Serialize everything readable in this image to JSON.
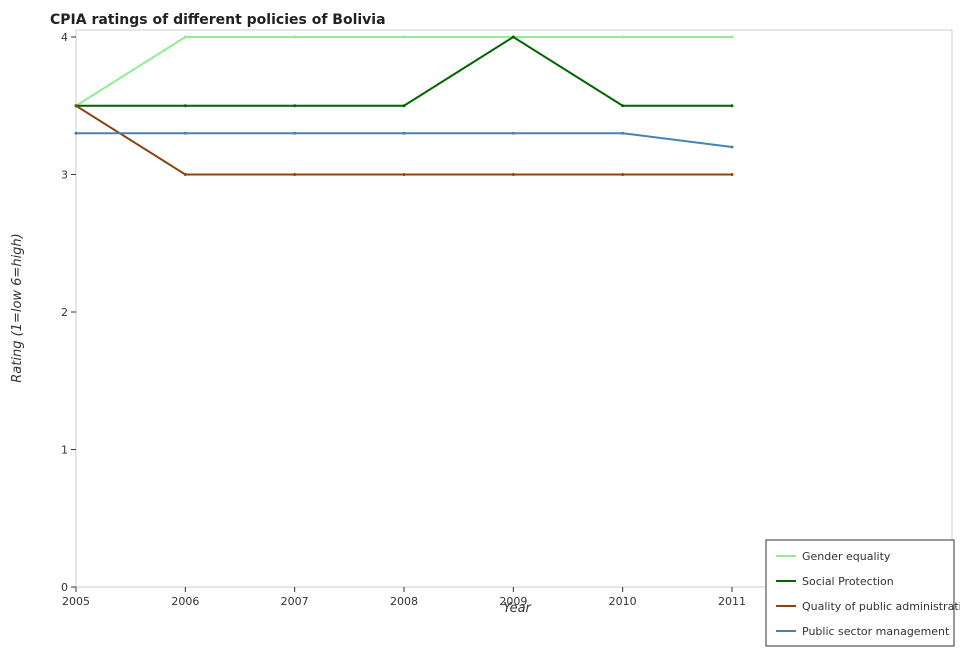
{
  "chart_data": {
    "type": "line",
    "title": "CPIA ratings of different policies of Bolivia",
    "xlabel": "Year",
    "ylabel": "Rating (1=low 6=high)",
    "categories": [
      "2005",
      "2006",
      "2007",
      "2008",
      "2009",
      "2010",
      "2011"
    ],
    "ylim": [
      0,
      4
    ],
    "yticks": [
      "0",
      "1",
      "2",
      "3",
      "4"
    ],
    "grid": false,
    "legend_position": "bottom-right",
    "series": [
      {
        "name": "Gender equality",
        "color": "#90ee90",
        "values": [
          3.5,
          4.0,
          4.0,
          4.0,
          4.0,
          4.0,
          4.0
        ]
      },
      {
        "name": "Social Protection",
        "color": "#006400",
        "values": [
          3.5,
          3.5,
          3.5,
          3.5,
          4.0,
          3.5,
          3.5
        ]
      },
      {
        "name": "Quality of public administration",
        "color": "#8b4513",
        "values": [
          3.5,
          3.0,
          3.0,
          3.0,
          3.0,
          3.0,
          3.0
        ]
      },
      {
        "name": "Public sector management",
        "color": "#4682b4",
        "values": [
          3.3,
          3.3,
          3.3,
          3.3,
          3.3,
          3.3,
          3.2
        ]
      }
    ]
  }
}
